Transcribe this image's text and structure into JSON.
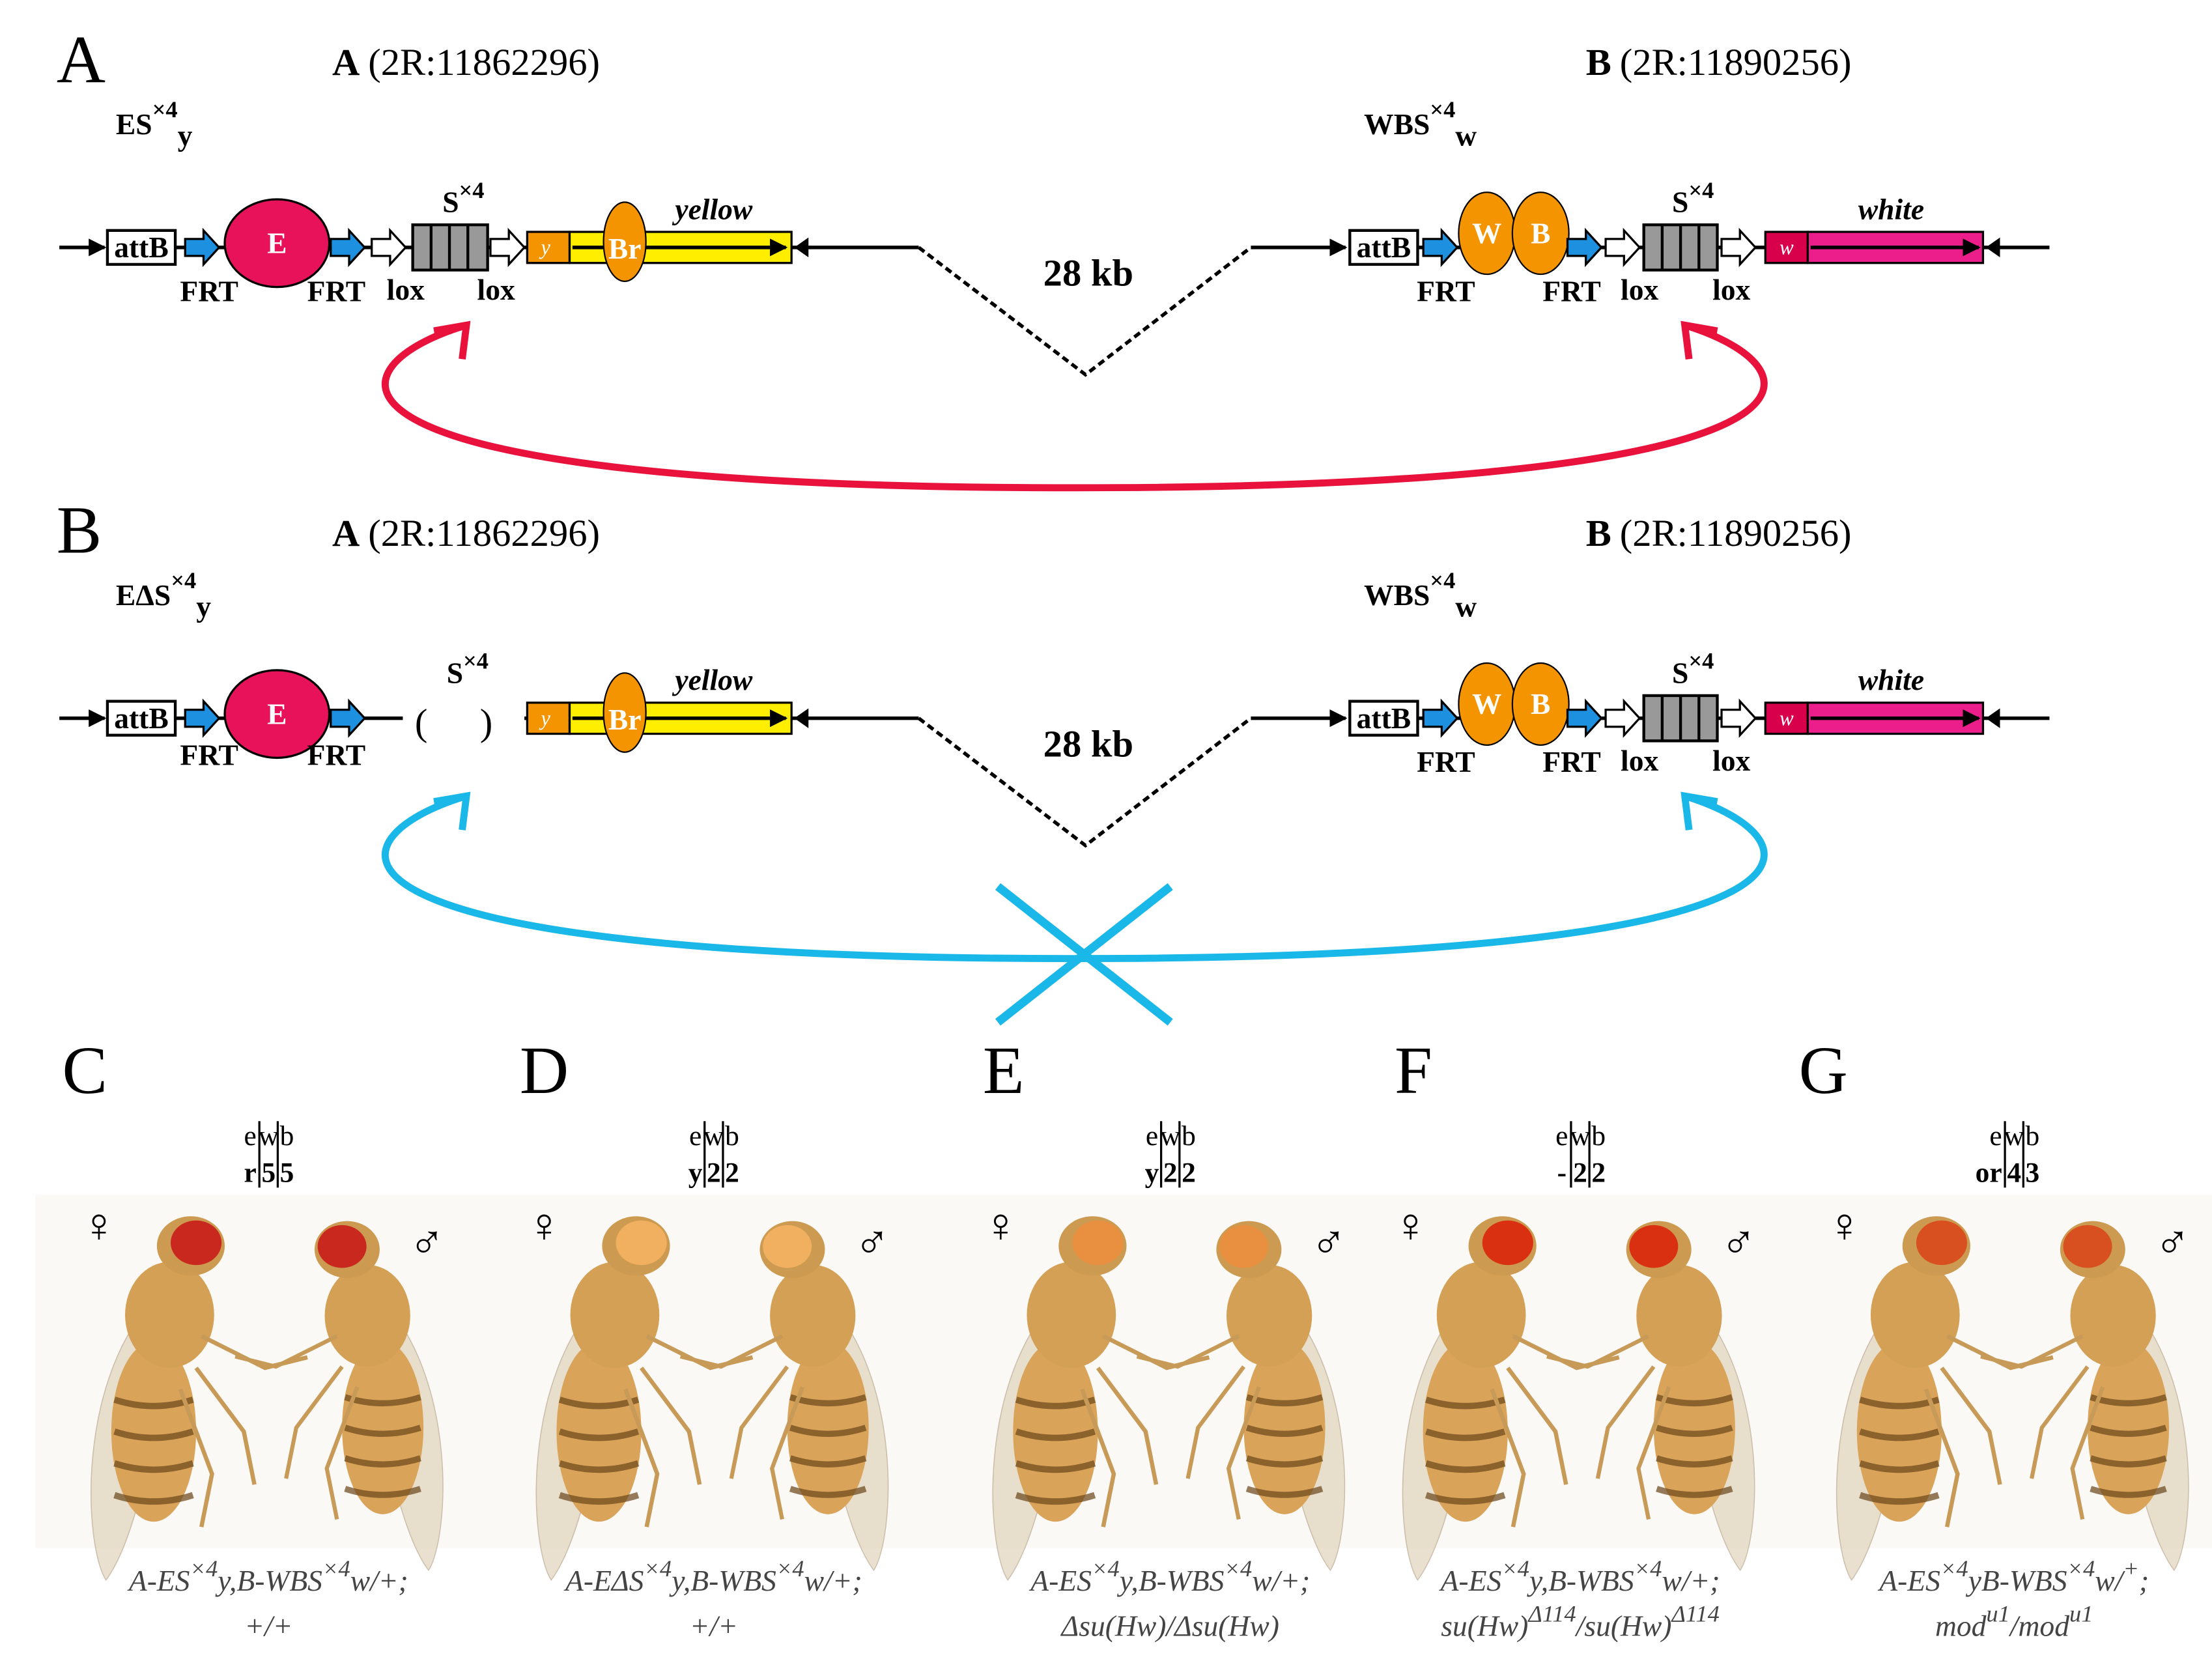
{
  "panel_a": {
    "letter": "A",
    "site_a": {
      "name": "A",
      "coord": "(2R:11862296)"
    },
    "site_b": {
      "name": "B",
      "coord": "(2R:11890256)"
    },
    "construct_left": [
      "ES",
      "×4",
      "y"
    ],
    "construct_right": [
      "WBS",
      "×4",
      "w"
    ],
    "distance": "28 kb"
  },
  "panel_b": {
    "letter": "B",
    "site_a": {
      "name": "A",
      "coord": "(2R:11862296)"
    },
    "site_b": {
      "name": "B",
      "coord": "(2R:11890256)"
    },
    "construct_left": [
      "EΔS",
      "×4",
      "y"
    ],
    "construct_right": [
      "WBS",
      "×4",
      "w"
    ],
    "distance": "28 kb"
  },
  "elements": {
    "attb": "attB",
    "frt": "FRT",
    "lox": "lox",
    "enhancer": "E",
    "w_enh": "W",
    "b_enh": "B",
    "insulator": [
      "S",
      "×4"
    ],
    "y_box": "y",
    "br": "Br",
    "yellow": "yellow",
    "w_box": "w",
    "white": "white",
    "paren_open": "(",
    "paren_close": ")"
  },
  "female": "♀",
  "male": "♂",
  "flies": [
    {
      "letter": "C",
      "header": [
        "e",
        "w",
        "b"
      ],
      "scores": [
        "r",
        "5",
        "5"
      ],
      "eye_color": "#c8281e",
      "genotype": [
        [
          "A-ES",
          "×4",
          "y,B-WBS",
          "×4",
          "w/+;"
        ],
        [
          "+/+"
        ]
      ]
    },
    {
      "letter": "D",
      "header": [
        "e",
        "w",
        "b"
      ],
      "scores": [
        "y",
        "2",
        "2"
      ],
      "eye_color": "#f0b060",
      "genotype": [
        [
          "A-EΔS",
          "×4",
          "y,B-WBS",
          "×4",
          "w/+;"
        ],
        [
          "+/+"
        ]
      ]
    },
    {
      "letter": "E",
      "header": [
        "e",
        "w",
        "b"
      ],
      "scores": [
        "y",
        "2",
        "2"
      ],
      "eye_color": "#e89040",
      "genotype": [
        [
          "A-ES",
          "×4",
          "y,B-WBS",
          "×4",
          "w/+;"
        ],
        [
          "Δsu(Hw)/Δsu(Hw)"
        ]
      ]
    },
    {
      "letter": "F",
      "header": [
        "e",
        "w",
        "b"
      ],
      "scores": [
        "-",
        "2",
        "2"
      ],
      "eye_color": "#d83010",
      "genotype": [
        [
          "A-ES",
          "×4",
          "y,B-WBS",
          "×4",
          "w/+;"
        ],
        [
          "su(Hw)",
          "Δ114",
          "/su(Hw)",
          "Δ114"
        ]
      ]
    },
    {
      "letter": "G",
      "header": [
        "e",
        "w",
        "b"
      ],
      "scores": [
        "or",
        "4",
        "3"
      ],
      "eye_color": "#d85020",
      "genotype": [
        [
          "A-ES",
          "×4",
          "yB-WBS",
          "×4",
          "w/",
          "+",
          ";"
        ],
        [
          "mod",
          "u1",
          "/mod",
          "u1"
        ]
      ]
    }
  ]
}
